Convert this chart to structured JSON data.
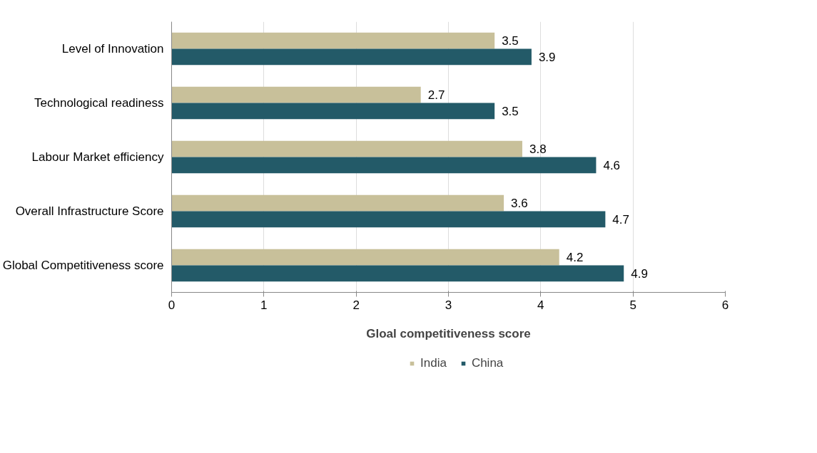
{
  "chart_data": {
    "type": "bar",
    "orientation": "horizontal",
    "xlabel": "Gloal competitiveness score",
    "categories": [
      "Level of Innovation",
      "Technological readiness",
      "Labour Market efficiency",
      "Overall Infrastructure Score",
      "Global Competitiveness score"
    ],
    "series": [
      {
        "name": "India",
        "color": "#c8c09a",
        "values": [
          3.5,
          2.7,
          3.8,
          3.6,
          4.2
        ]
      },
      {
        "name": "China",
        "color": "#235a68",
        "values": [
          3.9,
          3.5,
          4.6,
          4.7,
          4.9
        ]
      }
    ],
    "xlim": [
      0,
      6
    ],
    "xticks": [
      0,
      1,
      2,
      3,
      4,
      5,
      6
    ],
    "grid": "x",
    "legend": "bottom",
    "data_labels": true
  }
}
